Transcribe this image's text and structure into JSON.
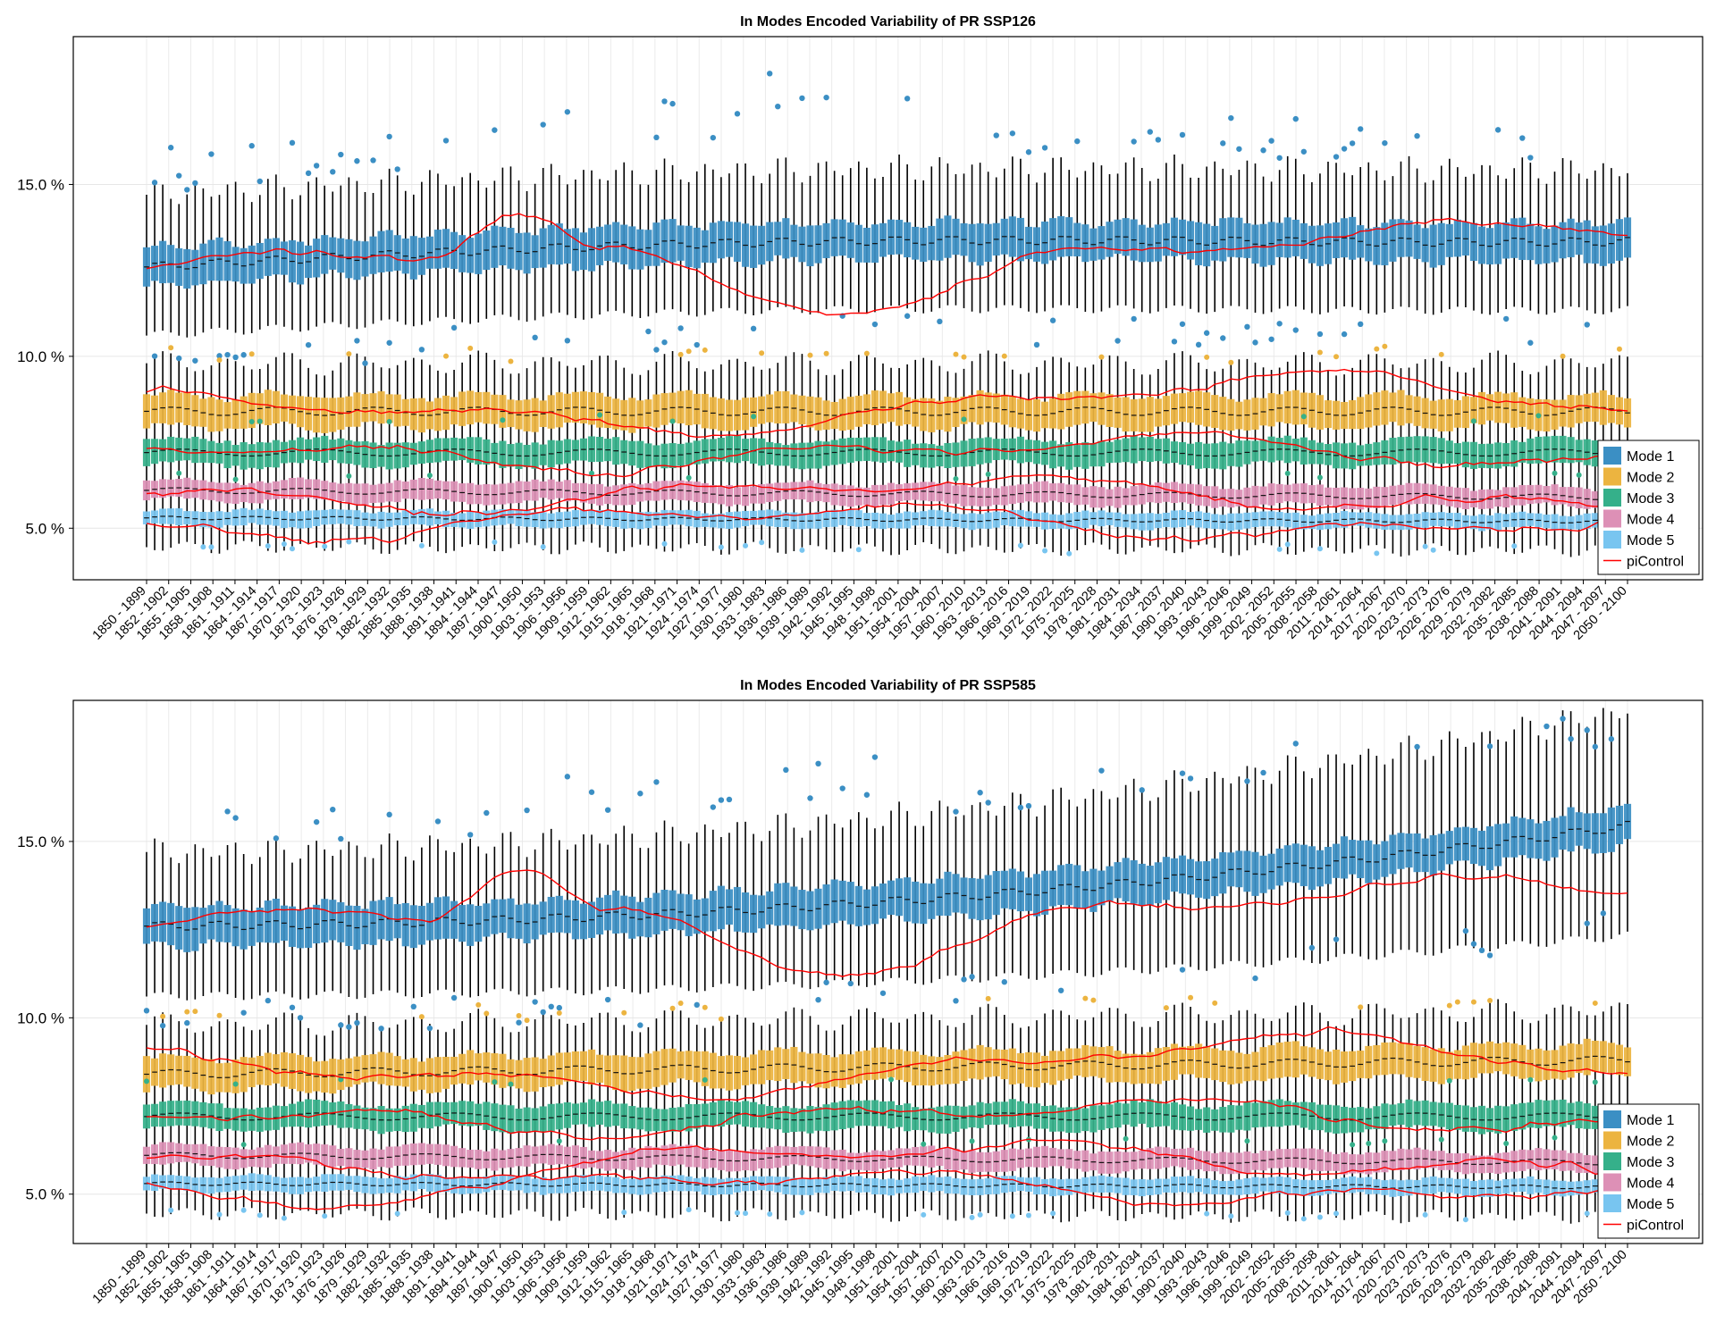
{
  "chart_data": [
    {
      "type": "box",
      "title": "In Modes Encoded Variability of PR SSP126",
      "scenario": "ssp126",
      "y_tick_labels": [
        "5.0 %",
        "10.0 %",
        "15.0 %"
      ],
      "y_tick_values": [
        5.0,
        10.0,
        15.0
      ],
      "ylim": [
        3.5,
        19.3
      ],
      "grid": true,
      "legend_position": "bottom-right",
      "legend": [
        {
          "label": "Mode 1",
          "color": "#3b8fc4",
          "kind": "patch"
        },
        {
          "label": "Mode 2",
          "color": "#ecb440",
          "kind": "patch"
        },
        {
          "label": "Mode 3",
          "color": "#35b08a",
          "kind": "patch"
        },
        {
          "label": "Mode 4",
          "color": "#dd90b6",
          "kind": "patch"
        },
        {
          "label": "Mode 5",
          "color": "#78c5f0",
          "kind": "patch"
        },
        {
          "label": "piControl",
          "color": "#ff0000",
          "kind": "line"
        }
      ],
      "series_medians": [
        {
          "name": "Mode 1",
          "start": 12.6,
          "end": 13.9
        },
        {
          "name": "Mode 2",
          "start": 8.4,
          "end": 8.4
        },
        {
          "name": "Mode 3",
          "start": 7.2,
          "end": 7.2
        },
        {
          "name": "Mode 4",
          "start": 6.1,
          "end": 5.9
        },
        {
          "name": "Mode 5",
          "start": 5.3,
          "end": 5.2
        }
      ]
    },
    {
      "type": "box",
      "title": "In Modes Encoded Variability of PR SSP585",
      "scenario": "ssp585",
      "y_tick_labels": [
        "5.0 %",
        "10.0 %",
        "15.0 %"
      ],
      "y_tick_values": [
        5.0,
        10.0,
        15.0
      ],
      "ylim": [
        3.6,
        19.0
      ],
      "grid": true,
      "legend_position": "bottom-right",
      "legend": [
        {
          "label": "Mode 1",
          "color": "#3b8fc4",
          "kind": "patch"
        },
        {
          "label": "Mode 2",
          "color": "#ecb440",
          "kind": "patch"
        },
        {
          "label": "Mode 3",
          "color": "#35b08a",
          "kind": "patch"
        },
        {
          "label": "Mode 4",
          "color": "#dd90b6",
          "kind": "patch"
        },
        {
          "label": "Mode 5",
          "color": "#78c5f0",
          "kind": "patch"
        },
        {
          "label": "piControl",
          "color": "#ff0000",
          "kind": "line"
        }
      ],
      "series_medians": [
        {
          "name": "Mode 1",
          "start": 12.6,
          "end": 15.4
        },
        {
          "name": "Mode 2",
          "start": 8.4,
          "end": 8.8
        },
        {
          "name": "Mode 3",
          "start": 7.2,
          "end": 7.0
        },
        {
          "name": "Mode 4",
          "start": 6.1,
          "end": 5.9
        },
        {
          "name": "Mode 5",
          "start": 5.3,
          "end": 5.2
        }
      ]
    }
  ],
  "x_tick_labels": [
    "1850 - 1899",
    "1852 - 1902",
    "1855 - 1905",
    "1858 - 1908",
    "1861 - 1911",
    "1864 - 1914",
    "1867 - 1917",
    "1870 - 1920",
    "1873 - 1923",
    "1876 - 1926",
    "1879 - 1929",
    "1882 - 1932",
    "1885 - 1935",
    "1888 - 1938",
    "1891 - 1941",
    "1894 - 1944",
    "1897 - 1947",
    "1900 - 1950",
    "1903 - 1953",
    "1906 - 1956",
    "1909 - 1959",
    "1912 - 1962",
    "1915 - 1965",
    "1918 - 1968",
    "1921 - 1971",
    "1924 - 1974",
    "1927 - 1977",
    "1930 - 1980",
    "1933 - 1983",
    "1936 - 1986",
    "1939 - 1989",
    "1942 - 1992",
    "1945 - 1995",
    "1948 - 1998",
    "1951 - 2001",
    "1954 - 2004",
    "1957 - 2007",
    "1960 - 2010",
    "1963 - 2013",
    "1966 - 2016",
    "1969 - 2019",
    "1972 - 2022",
    "1975 - 2025",
    "1978 - 2028",
    "1981 - 2031",
    "1984 - 2034",
    "1987 - 2037",
    "1990 - 2040",
    "1993 - 2043",
    "1996 - 2046",
    "1999 - 2049",
    "2002 - 2052",
    "2005 - 2055",
    "2008 - 2058",
    "2011 - 2061",
    "2014 - 2064",
    "2017 - 2067",
    "2020 - 2070",
    "2023 - 2073",
    "2026 - 2076",
    "2029 - 2079",
    "2032 - 2082",
    "2035 - 2085",
    "2038 - 2088",
    "2041 - 2091",
    "2044 - 2094",
    "2047 - 2097",
    "2050 - 2100"
  ]
}
